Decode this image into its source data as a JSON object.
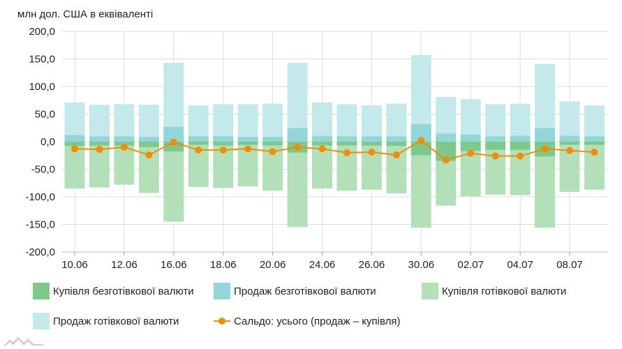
{
  "unit_label": "млн дол. США в еквіваленті",
  "colors": {
    "cashless_buy": "#7dc98c",
    "cashless_sell": "#93d6d8",
    "cash_buy": "#b3e0b8",
    "cash_sell": "#c3e9ea",
    "balance": "#f28c00"
  },
  "chart_data": {
    "type": "bar",
    "stacked": true,
    "ylim": [
      -200,
      200
    ],
    "yticks": [
      -200,
      -150,
      -100,
      -50,
      0,
      50,
      100,
      150,
      200
    ],
    "ytick_labels": [
      "-200,0",
      "-150,0",
      "-100,0",
      "-50,0",
      "0,0",
      "50,0",
      "100,0",
      "150,0",
      "200,0"
    ],
    "x_tick_labels": [
      {
        "index": 0,
        "label": "10.06"
      },
      {
        "index": 2,
        "label": "12.06"
      },
      {
        "index": 4,
        "label": "16.06"
      },
      {
        "index": 6,
        "label": "18.06"
      },
      {
        "index": 8,
        "label": "20.06"
      },
      {
        "index": 10,
        "label": "24.06"
      },
      {
        "index": 12,
        "label": "26.06"
      },
      {
        "index": 14,
        "label": "30.06"
      },
      {
        "index": 16,
        "label": "02.07"
      },
      {
        "index": 18,
        "label": "04.07"
      },
      {
        "index": 20,
        "label": "08.07"
      }
    ],
    "categories_count": 22,
    "grid": true,
    "legend_position": "bottom",
    "series": [
      {
        "name": "Купівля безготівкової валюти",
        "key": "cashless_buy",
        "kind": "bar",
        "values": [
          -8,
          -7,
          -7,
          -10,
          -18,
          -6,
          -7,
          -6,
          -7,
          -20,
          -7,
          -7,
          -7,
          -8,
          -25,
          -35,
          -17,
          -15,
          -15,
          -27,
          -6,
          -6
        ]
      },
      {
        "name": "Продаж безготівкової валюти",
        "key": "cashless_sell",
        "kind": "bar",
        "values": [
          12,
          10,
          10,
          9,
          27,
          10,
          10,
          9,
          9,
          25,
          11,
          10,
          10,
          10,
          32,
          15,
          13,
          10,
          11,
          25,
          11,
          10
        ]
      },
      {
        "name": "Купівля готівкової валюти",
        "key": "cash_buy",
        "kind": "bar",
        "values": [
          -77,
          -76,
          -71,
          -83,
          -127,
          -76,
          -77,
          -75,
          -82,
          -135,
          -78,
          -82,
          -80,
          -86,
          -131,
          -81,
          -82,
          -81,
          -82,
          -129,
          -85,
          -81
        ]
      },
      {
        "name": "Продаж готівкової валюти",
        "key": "cash_sell",
        "kind": "bar",
        "values": [
          59,
          57,
          58,
          58,
          116,
          56,
          58,
          59,
          60,
          118,
          60,
          58,
          56,
          59,
          125,
          66,
          64,
          58,
          58,
          116,
          62,
          56
        ]
      },
      {
        "name": "Сальдо: усього (продаж – купівля)",
        "key": "balance",
        "kind": "line",
        "values": [
          -13,
          -14,
          -10,
          -24,
          -1,
          -15,
          -15,
          -13,
          -18,
          -10,
          -13,
          -20,
          -19,
          -24,
          2,
          -33,
          -21,
          -26,
          -26,
          -13,
          -16,
          -19
        ]
      }
    ]
  }
}
